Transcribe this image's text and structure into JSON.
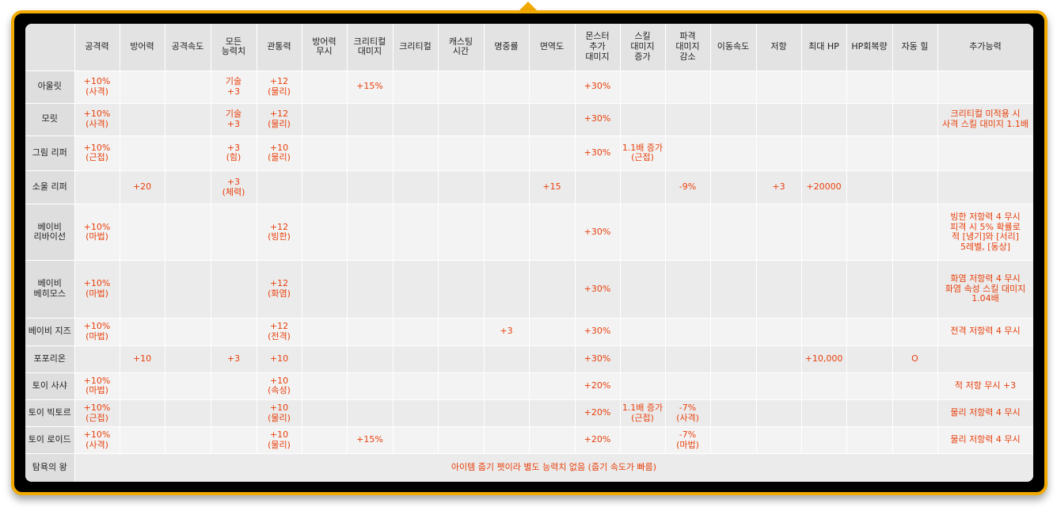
{
  "headers": [
    "",
    "공격력",
    "방어력",
    "공격속도",
    "모든\n능력치",
    "관통력",
    "방어력\n무시",
    "크리티컬\n대미지",
    "크리티컬",
    "캐스팅\n시간",
    "명중률",
    "면역도",
    "몬스터\n추가\n대미지",
    "스킬\n대미지\n증가",
    "파격\n대미지\n감소",
    "이동속도",
    "저항",
    "최대 HP",
    "HP회복량",
    "자동 힐",
    "추가능력"
  ],
  "rows": [
    {
      "name": "아울릿",
      "cells": [
        "+10%\n(사격)",
        "",
        "",
        "기술\n+3",
        "+12\n(물리)",
        "",
        "+15%",
        "",
        "",
        "",
        "",
        "+30%",
        "",
        "",
        "",
        "",
        "",
        "",
        "",
        ""
      ]
    },
    {
      "name": "모릿",
      "cells": [
        "+10%\n(사격)",
        "",
        "",
        "기술\n+3",
        "+12\n(물리)",
        "",
        "",
        "",
        "",
        "",
        "",
        "+30%",
        "",
        "",
        "",
        "",
        "",
        "",
        "",
        "크리티컬 미적용 시\n사격 스킬 대미지 1.1배"
      ]
    },
    {
      "name": "그림 리퍼",
      "cells": [
        "+10%\n(근접)",
        "",
        "",
        "+3\n(힘)",
        "+10\n(물리)",
        "",
        "",
        "",
        "",
        "",
        "",
        "+30%",
        "1.1배 증가\n(근접)",
        "",
        "",
        "",
        "",
        "",
        "",
        ""
      ]
    },
    {
      "name": "소울 리퍼",
      "cells": [
        "",
        "+20",
        "",
        "+3\n(체력)",
        "",
        "",
        "",
        "",
        "",
        "",
        "+15",
        "",
        "",
        "-9%",
        "",
        "+3",
        "+20000",
        "",
        "",
        ""
      ]
    },
    {
      "name": "베이비\n리바이선",
      "cells": [
        "+10%\n(마법)",
        "",
        "",
        "",
        "+12\n(빙한)",
        "",
        "",
        "",
        "",
        "",
        "",
        "+30%",
        "",
        "",
        "",
        "",
        "",
        "",
        "",
        "빙한 저항력 4 무시\n피격 시 5% 확률로\n적 [냉기]와 [서리]\n5레벨, [동상]"
      ]
    },
    {
      "name": "베이비\n베히모스",
      "cells": [
        "+10%\n(마법)",
        "",
        "",
        "",
        "+12\n(화염)",
        "",
        "",
        "",
        "",
        "",
        "",
        "+30%",
        "",
        "",
        "",
        "",
        "",
        "",
        "",
        "화염 저항력 4 무시\n화염 속성 스킬 대미지\n1.04배"
      ]
    },
    {
      "name": "베이비 지즈",
      "cells": [
        "+10%\n(마법)",
        "",
        "",
        "",
        "+12\n(전격)",
        "",
        "",
        "",
        "",
        "+3",
        "",
        "+30%",
        "",
        "",
        "",
        "",
        "",
        "",
        "",
        "전격 저항력 4 무시"
      ]
    },
    {
      "name": "포포리온",
      "cells": [
        "",
        "+10",
        "",
        "+3",
        "+10",
        "",
        "",
        "",
        "",
        "",
        "",
        "+30%",
        "",
        "",
        "",
        "",
        "+10,000",
        "",
        "O",
        ""
      ]
    },
    {
      "name": "토이 사샤",
      "cells": [
        "+10%\n(마법)",
        "",
        "",
        "",
        "+10\n(속성)",
        "",
        "",
        "",
        "",
        "",
        "",
        "+20%",
        "",
        "",
        "",
        "",
        "",
        "",
        "",
        "적 저항 무시 +3"
      ]
    },
    {
      "name": "토이 빅토르",
      "cells": [
        "+10%\n(근접)",
        "",
        "",
        "",
        "+10\n(물리)",
        "",
        "",
        "",
        "",
        "",
        "",
        "+20%",
        "1.1배 증가\n(근접)",
        "-7%\n(사격)",
        "",
        "",
        "",
        "",
        "",
        "물리 저항력 4 무시"
      ]
    },
    {
      "name": "토이 로이드",
      "cells": [
        "+10%\n(사격)",
        "",
        "",
        "",
        "+10\n(물리)",
        "",
        "+15%",
        "",
        "",
        "",
        "",
        "+20%",
        "",
        "-7%\n(마법)",
        "",
        "",
        "",
        "",
        "",
        "물리 저항력 4 무시"
      ]
    }
  ],
  "last_row": {
    "name": "탐욕의 왕",
    "text": "아이템 줍기 펫이라 별도 능력치 없음 (줍기 속도가 빠름)"
  },
  "colors": {
    "accent_text": "#e8400c",
    "frame_border": "#f2a900"
  }
}
